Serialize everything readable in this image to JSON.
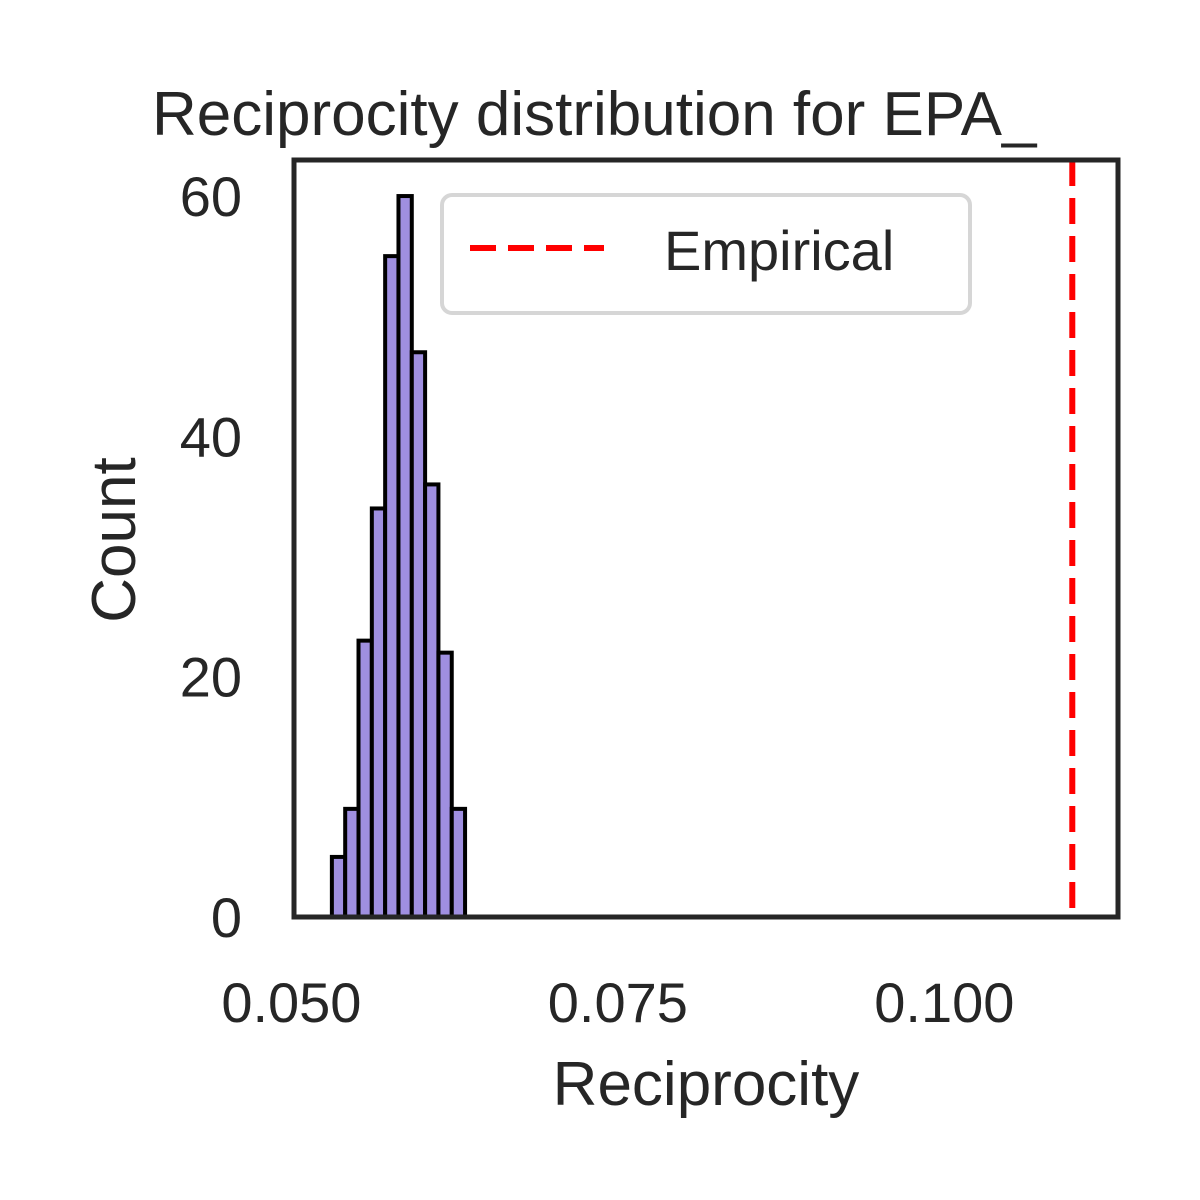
{
  "chart_data": {
    "type": "histogram",
    "title": "Reciprocity distribution for EPA_",
    "xlabel": "Reciprocity",
    "ylabel": "Count",
    "xlim": [
      0.0502,
      0.1133
    ],
    "ylim": [
      0,
      63
    ],
    "xticks": [
      0.05,
      0.075,
      0.1
    ],
    "xtick_labels": [
      "0.050",
      "0.075",
      "0.100"
    ],
    "yticks": [
      0,
      20,
      40,
      60
    ],
    "ytick_labels": [
      "0",
      "20",
      "40",
      "60"
    ],
    "grid": false,
    "bin_start": 0.0531,
    "bin_width": 0.00102,
    "counts": [
      5,
      9,
      23,
      34,
      55,
      60,
      47,
      36,
      22,
      9
    ],
    "bar_color": "#9f8fe0",
    "bar_edge_color": "#000000",
    "empirical_value": 0.1098,
    "empirical_color": "#ff0000",
    "legend": {
      "placement": "top-right",
      "entries": [
        {
          "label": "Empirical",
          "style": "dashed",
          "color": "#ff0000"
        }
      ]
    }
  }
}
